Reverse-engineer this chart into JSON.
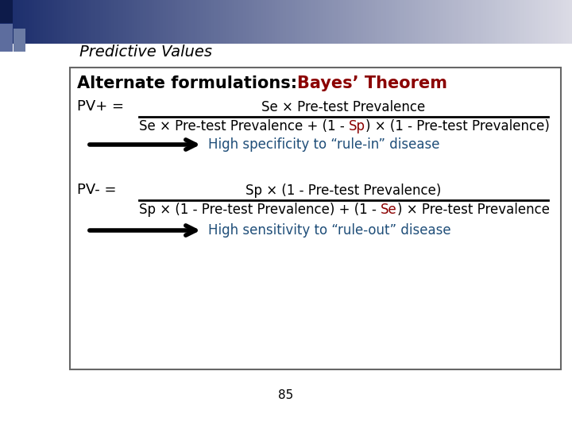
{
  "title": "Predictive Values",
  "title_color": "#000000",
  "title_fontsize": 14,
  "bg_color": "#ffffff",
  "box_border_color": "#666666",
  "header_black": "Alternate formulations:",
  "header_red": "Bayes’ Theorem",
  "header_fontsize": 15,
  "red_color": "#8B0000",
  "blue_color": "#1F4E79",
  "black": "#000000",
  "pv_plus_label": "PV+ =",
  "pv_minus_label": "PV- =",
  "numerator_plus": "Se × Pre-test Prevalence",
  "denom_plus_b1": "Se × Pre-test Prevalence + (1 - ",
  "denom_plus_r": "Sp",
  "denom_plus_b2": ") × (1 - Pre-test Prevalence)",
  "numerator_minus": "Sp × (1 - Pre-test Prevalence)",
  "denom_minus_b1": "Sp × (1 - Pre-test Prevalence) + (1 - ",
  "denom_minus_r": "Se",
  "denom_minus_b2": ") × Pre-test Prevalence",
  "arrow_text_plus": "High specificity to “rule-in” disease",
  "arrow_text_minus": "High sensitivity to “rule-out” disease",
  "page_number": "85",
  "bar_color_left": "#1a2c6b",
  "bar_color_right": "#ccccdd"
}
